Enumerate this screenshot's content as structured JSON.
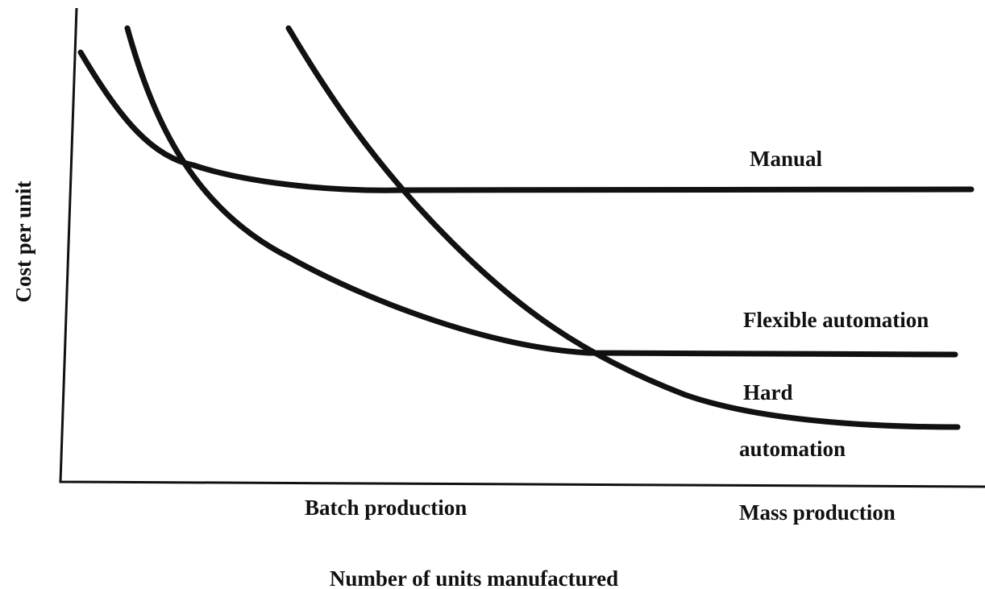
{
  "axes": {
    "y_label": "Cost per unit",
    "x_label": "Number of units manufactured"
  },
  "x_annotations": [
    "Batch production",
    "Mass production"
  ],
  "curves": [
    {
      "label": "Manual"
    },
    {
      "label": "Flexible automation"
    },
    {
      "label_lines": [
        "Hard",
        "automation"
      ]
    }
  ]
}
